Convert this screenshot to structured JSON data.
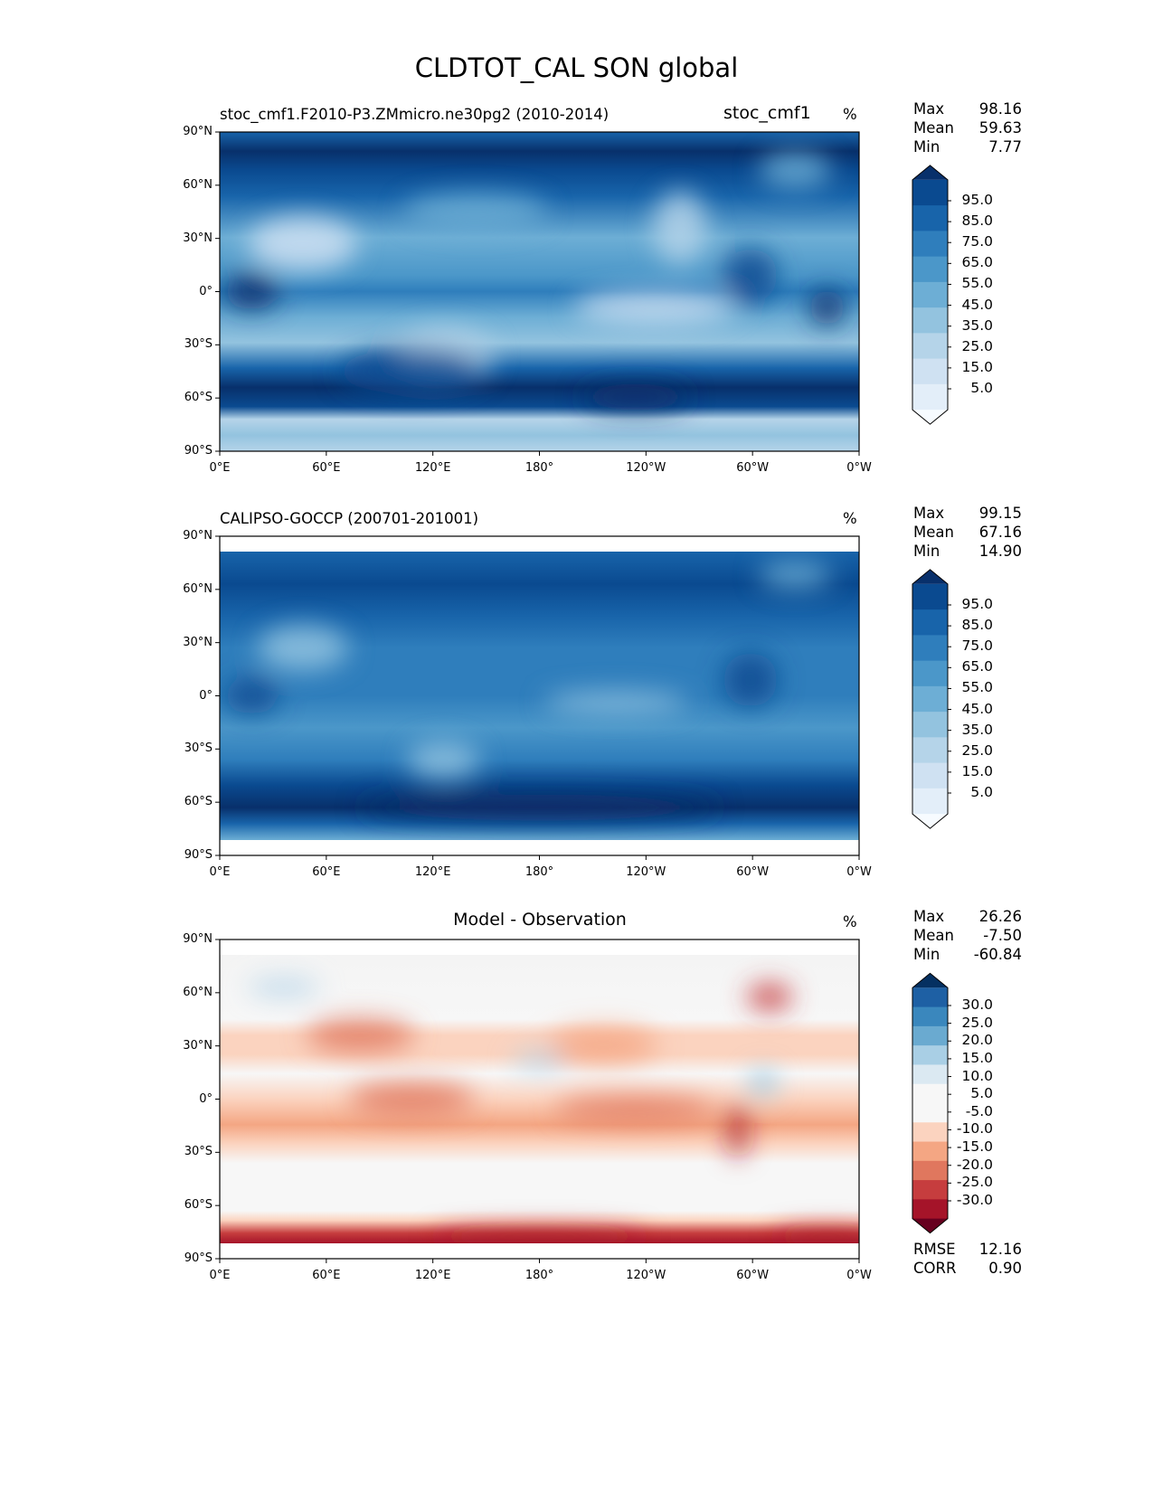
{
  "suptitle": "CLDTOT_CAL SON global",
  "units": "%",
  "lat_ticks": [
    "90°N",
    "60°N",
    "30°N",
    "0°",
    "30°S",
    "60°S",
    "90°S"
  ],
  "lon_ticks": [
    "0°E",
    "60°E",
    "120°E",
    "180°",
    "120°W",
    "60°W",
    "0°W"
  ],
  "panels": [
    {
      "left_title": "stoc_cmf1.F2010-P3.ZMmicro.ne30pg2 (2010-2014)",
      "center_title": "stoc_cmf1",
      "units": "%",
      "stats": [
        {
          "label": "Max",
          "value": "98.16"
        },
        {
          "label": "Mean",
          "value": "59.63"
        },
        {
          "label": "Min",
          "value": "7.77"
        }
      ],
      "colorbar_labels": [
        "95.0",
        "85.0",
        "75.0",
        "65.0",
        "55.0",
        "45.0",
        "35.0",
        "25.0",
        "15.0",
        "5.0"
      ]
    },
    {
      "left_title": "CALIPSO-GOCCP (200701-201001)",
      "center_title": "",
      "units": "%",
      "stats": [
        {
          "label": "Max",
          "value": "99.15"
        },
        {
          "label": "Mean",
          "value": "67.16"
        },
        {
          "label": "Min",
          "value": "14.90"
        }
      ],
      "colorbar_labels": [
        "95.0",
        "85.0",
        "75.0",
        "65.0",
        "55.0",
        "45.0",
        "35.0",
        "25.0",
        "15.0",
        "5.0"
      ]
    },
    {
      "left_title": "",
      "center_title": "Model - Observation",
      "units": "%",
      "stats": [
        {
          "label": "Max",
          "value": "26.26"
        },
        {
          "label": "Mean",
          "value": "-7.50"
        },
        {
          "label": "Min",
          "value": "-60.84"
        }
      ],
      "colorbar_labels": [
        "30.0",
        "25.0",
        "20.0",
        "15.0",
        "10.0",
        "5.0",
        "-5.0",
        "-10.0",
        "-15.0",
        "-20.0",
        "-25.0",
        "-30.0"
      ],
      "metrics": [
        {
          "label": "RMSE",
          "value": "12.16"
        },
        {
          "label": "CORR",
          "value": "0.90"
        }
      ]
    }
  ],
  "colors": {
    "blues": [
      "#f7fbff",
      "#e3eef9",
      "#cfe1f2",
      "#b5d4e9",
      "#93c3df",
      "#6daed5",
      "#4b97c9",
      "#2f7ebc",
      "#1864aa",
      "#0a4a90",
      "#08306b"
    ],
    "rdbu": [
      "#67001f",
      "#a51429",
      "#c63d3e",
      "#e0775e",
      "#f4a683",
      "#fbd3bf",
      "#f7f7f7",
      "#f7f7f7",
      "#dbe9f2",
      "#a9cfe5",
      "#6aaad0",
      "#3a87bd",
      "#1e60a4",
      "#053061"
    ]
  },
  "chart_data": {
    "type": "heatmap",
    "title": "CLDTOT_CAL SON global",
    "variable": "CLDTOT_CAL",
    "units": "%",
    "xlim": [
      0,
      360
    ],
    "ylim": [
      -90,
      90
    ],
    "levels_main": [
      0,
      5,
      15,
      25,
      35,
      45,
      55,
      65,
      75,
      85,
      95,
      100
    ],
    "levels_diff": [
      -30,
      -25,
      -20,
      -15,
      -10,
      -5,
      5,
      10,
      15,
      20,
      25,
      30
    ],
    "zonal_sketch_lat": [
      85,
      70,
      55,
      40,
      25,
      10,
      0,
      -10,
      -25,
      -40,
      -55,
      -70,
      -85
    ],
    "series": [
      {
        "name": "stoc_cmf1",
        "zonal_mean": [
          70,
          85,
          80,
          60,
          45,
          60,
          70,
          60,
          45,
          75,
          90,
          85,
          40
        ]
      },
      {
        "name": "CALIPSO-GOCCP",
        "zonal_mean": [
          null,
          85,
          85,
          70,
          55,
          65,
          75,
          65,
          55,
          80,
          92,
          90,
          null
        ]
      },
      {
        "name": "Model - Observation",
        "zonal_mean": [
          null,
          0,
          -5,
          -10,
          -12,
          -5,
          -5,
          -8,
          -12,
          -5,
          -2,
          -25,
          null
        ]
      }
    ]
  }
}
